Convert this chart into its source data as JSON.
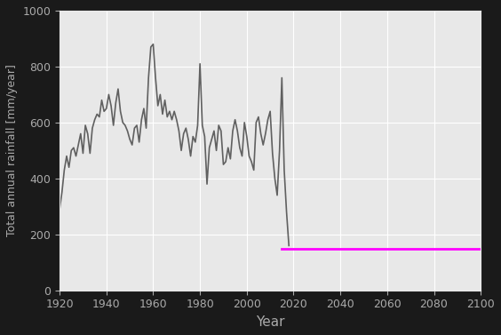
{
  "title": "",
  "xlabel": "Year",
  "ylabel": "Total annual rainfall [mm/year]",
  "xlim": [
    1920,
    2100
  ],
  "ylim": [
    0,
    1000
  ],
  "xticks": [
    1920,
    1940,
    1960,
    1980,
    2000,
    2020,
    2040,
    2060,
    2080,
    2100
  ],
  "yticks": [
    0,
    200,
    400,
    600,
    800,
    1000
  ],
  "historical_color": "#606060",
  "future_color": "#ff00ff",
  "future_flat_value": 150,
  "future_start": 2015,
  "future_end": 2100,
  "plot_bg_color": "#e8e8e8",
  "fig_bg_color": "#1a1a1a",
  "label_color": "#aaaaaa",
  "tick_color": "#aaaaaa",
  "grid_color": "#ffffff",
  "historical_data": {
    "years": [
      1920,
      1921,
      1922,
      1923,
      1924,
      1925,
      1926,
      1927,
      1928,
      1929,
      1930,
      1931,
      1932,
      1933,
      1934,
      1935,
      1936,
      1937,
      1938,
      1939,
      1940,
      1941,
      1942,
      1943,
      1944,
      1945,
      1946,
      1947,
      1948,
      1949,
      1950,
      1951,
      1952,
      1953,
      1954,
      1955,
      1956,
      1957,
      1958,
      1959,
      1960,
      1961,
      1962,
      1963,
      1964,
      1965,
      1966,
      1967,
      1968,
      1969,
      1970,
      1971,
      1972,
      1973,
      1974,
      1975,
      1976,
      1977,
      1978,
      1979,
      1980,
      1981,
      1982,
      1983,
      1984,
      1985,
      1986,
      1987,
      1988,
      1989,
      1990,
      1991,
      1992,
      1993,
      1994,
      1995,
      1996,
      1997,
      1998,
      1999,
      2000,
      2001,
      2002,
      2003,
      2004,
      2005,
      2006,
      2007,
      2008,
      2009,
      2010,
      2011,
      2012,
      2013,
      2014,
      2015,
      2016,
      2017,
      2018
    ],
    "values": [
      290,
      350,
      430,
      480,
      440,
      500,
      510,
      480,
      520,
      560,
      490,
      590,
      560,
      490,
      580,
      610,
      630,
      620,
      680,
      640,
      650,
      700,
      660,
      590,
      670,
      720,
      640,
      600,
      590,
      570,
      540,
      520,
      580,
      590,
      530,
      610,
      650,
      580,
      760,
      870,
      880,
      760,
      660,
      700,
      630,
      680,
      620,
      640,
      610,
      640,
      610,
      570,
      500,
      560,
      580,
      540,
      480,
      550,
      530,
      590,
      810,
      590,
      550,
      380,
      510,
      540,
      570,
      500,
      590,
      570,
      450,
      460,
      510,
      470,
      570,
      610,
      570,
      510,
      480,
      600,
      550,
      480,
      460,
      430,
      600,
      620,
      560,
      520,
      560,
      610,
      640,
      490,
      400,
      340,
      500,
      760,
      430,
      280,
      160
    ]
  }
}
